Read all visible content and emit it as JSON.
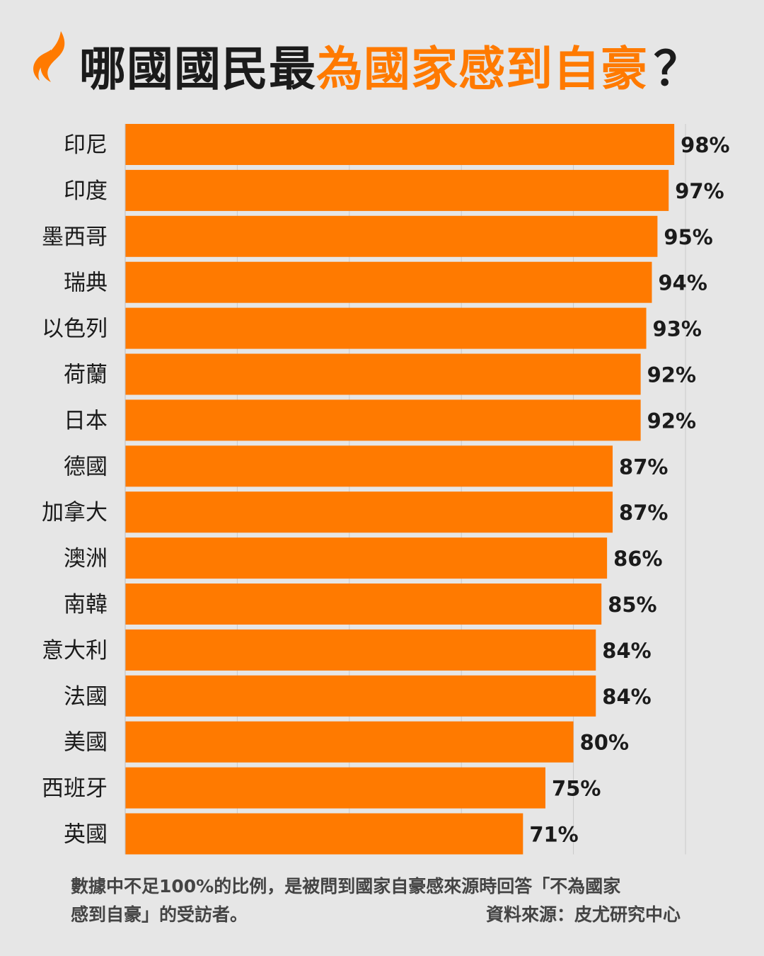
{
  "colors": {
    "background": "#e6e6e6",
    "accent": "#ff7a00",
    "text": "#1b1b1b",
    "note": "#444444"
  },
  "logo": {
    "icon": "sbs-flame-logo-icon"
  },
  "title": {
    "part1": "哪國國民最",
    "part2": "為國家感到自豪",
    "mark": "？"
  },
  "chart_data": {
    "type": "bar",
    "orientation": "horizontal",
    "title": "哪國國民最為國家感到自豪？",
    "categories": [
      "印尼",
      "印度",
      "墨西哥",
      "瑞典",
      "以色列",
      "荷蘭",
      "日本",
      "德國",
      "加拿大",
      "澳洲",
      "南韓",
      "意大利",
      "法國",
      "美國",
      "西班牙",
      "英國"
    ],
    "values": [
      98,
      97,
      95,
      94,
      93,
      92,
      92,
      87,
      87,
      86,
      85,
      84,
      84,
      80,
      75,
      71
    ],
    "value_labels": [
      "98%",
      "97%",
      "95%",
      "94%",
      "93%",
      "92%",
      "92%",
      "87%",
      "87%",
      "86%",
      "85%",
      "84%",
      "84%",
      "80%",
      "75%",
      "71%"
    ],
    "xlim": [
      0,
      100
    ],
    "grid": true,
    "legend": "none"
  },
  "footnote": {
    "line1": "數據中不足100%的比例，是被問到國家自豪感來源時回答「不為國家",
    "line2": "感到自豪」的受訪者。",
    "source": "資料來源：皮尤研究中心"
  }
}
